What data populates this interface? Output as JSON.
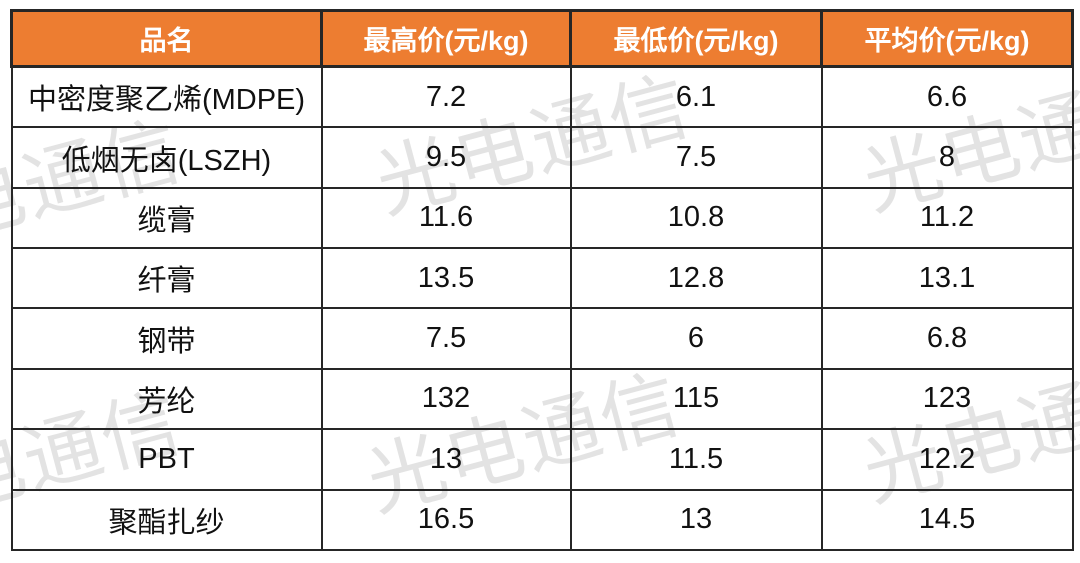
{
  "chart_data": {
    "type": "table",
    "columns": [
      "品名",
      "最高价(元/kg)",
      "最低价(元/kg)",
      "平均价(元/kg)"
    ],
    "rows": [
      [
        "中密度聚乙烯(MDPE)",
        "7.2",
        "6.1",
        "6.6"
      ],
      [
        "低烟无卤(LSZH)",
        "9.5",
        "7.5",
        "8"
      ],
      [
        "缆膏",
        "11.6",
        "10.8",
        "11.2"
      ],
      [
        "纤膏",
        "13.5",
        "12.8",
        "13.1"
      ],
      [
        "钢带",
        "7.5",
        "6",
        "6.8"
      ],
      [
        "芳纶",
        "132",
        "115",
        "123"
      ],
      [
        "PBT",
        "13",
        "11.5",
        "12.2"
      ],
      [
        "聚酯扎纱",
        "16.5",
        "13",
        "14.5"
      ]
    ]
  },
  "watermark": {
    "text": "光电通信"
  },
  "colors": {
    "header_bg": "#ED7D31",
    "header_text": "#FFFFFF",
    "border": "#262626",
    "cell_text": "#111111",
    "watermark": "#E3E3E3"
  }
}
